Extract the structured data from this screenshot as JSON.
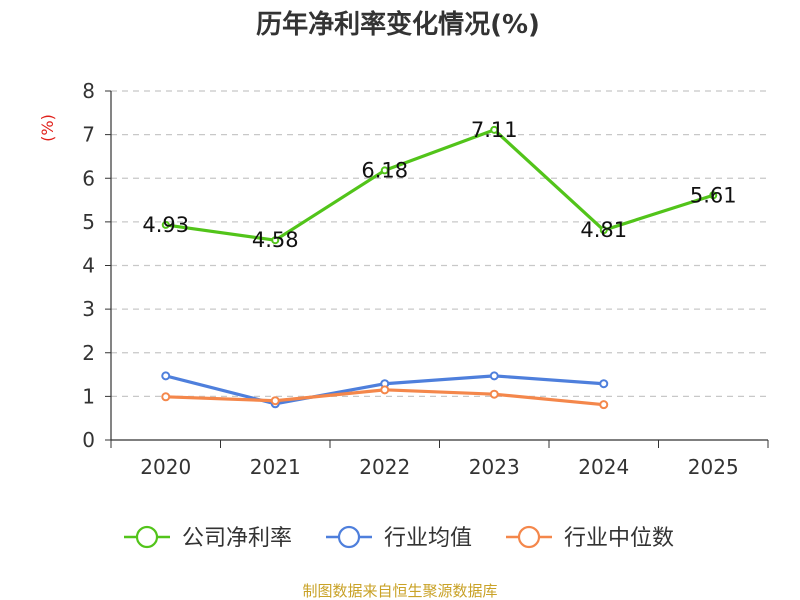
{
  "chart_data": {
    "type": "line",
    "title": "历年净利率变化情况(%)",
    "ylabel": "(%)",
    "xlabel": "",
    "ylim": [
      0,
      8
    ],
    "yticks": [
      "0",
      "1",
      "2",
      "3",
      "4",
      "5",
      "6",
      "7",
      "8"
    ],
    "categories": [
      "2020",
      "2021",
      "2022",
      "2023",
      "2024",
      "2025"
    ],
    "grid": true,
    "legend_position": "bottom",
    "series": [
      {
        "name": "公司净利率",
        "color": "#52c41a",
        "values": [
          4.93,
          4.58,
          6.18,
          7.11,
          4.81,
          5.61
        ],
        "labels": [
          "4.93",
          "4.58",
          "6.18",
          "7.11",
          "4.81",
          "5.61"
        ]
      },
      {
        "name": "行业均值",
        "color": "#4e7fdc",
        "values": [
          1.47,
          0.83,
          1.29,
          1.47,
          1.29,
          null
        ]
      },
      {
        "name": "行业中位数",
        "color": "#f4874b",
        "values": [
          0.99,
          0.9,
          1.15,
          1.05,
          0.81,
          null
        ]
      }
    ],
    "source": "制图数据来自恒生聚源数据库",
    "ylabel_color": "#e0201b",
    "source_color": "#c9a227"
  }
}
